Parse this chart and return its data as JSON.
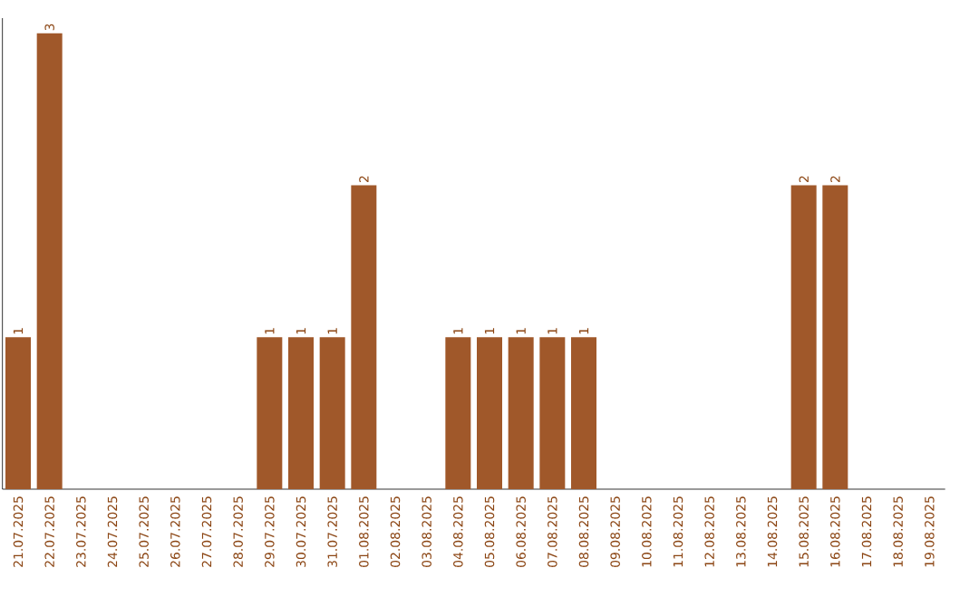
{
  "chart_data": {
    "type": "bar",
    "categories": [
      "21.07.2025",
      "22.07.2025",
      "23.07.2025",
      "24.07.2025",
      "25.07.2025",
      "26.07.2025",
      "27.07.2025",
      "28.07.2025",
      "29.07.2025",
      "30.07.2025",
      "31.07.2025",
      "01.08.2025",
      "02.08.2025",
      "03.08.2025",
      "04.08.2025",
      "05.08.2025",
      "06.08.2025",
      "07.08.2025",
      "08.08.2025",
      "09.08.2025",
      "10.08.2025",
      "11.08.2025",
      "12.08.2025",
      "13.08.2025",
      "14.08.2025",
      "15.08.2025",
      "16.08.2025",
      "17.08.2025",
      "18.08.2025",
      "19.08.2025"
    ],
    "values": [
      1,
      3,
      0,
      0,
      0,
      0,
      0,
      0,
      1,
      1,
      1,
      2,
      0,
      0,
      1,
      1,
      1,
      1,
      1,
      0,
      0,
      0,
      0,
      0,
      0,
      2,
      2,
      0,
      0,
      0
    ],
    "value_labels": [
      "1",
      "3",
      null,
      null,
      null,
      null,
      null,
      null,
      "1",
      "1",
      "1",
      "2",
      null,
      null,
      "1",
      "1",
      "1",
      "1",
      "1",
      null,
      null,
      null,
      null,
      null,
      null,
      "2",
      "2",
      null,
      null,
      null
    ],
    "color": "#a0582a",
    "ylim": [
      0,
      3.1
    ]
  }
}
